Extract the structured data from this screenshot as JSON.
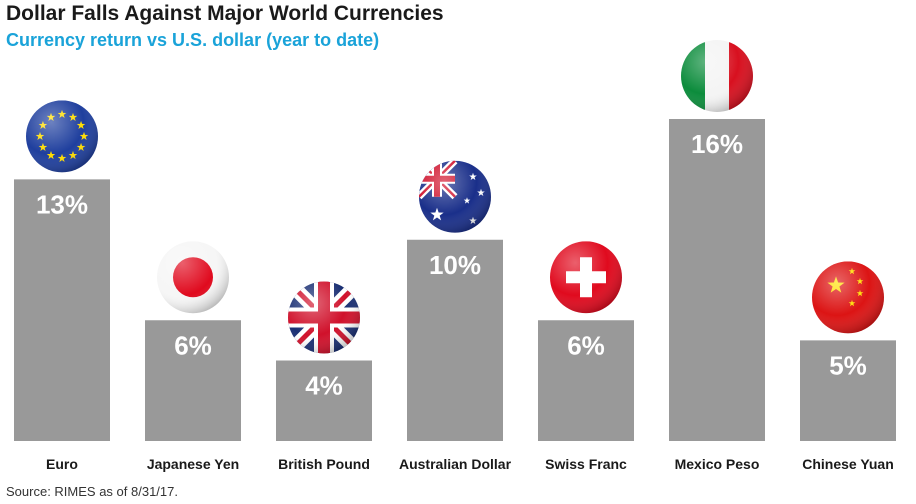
{
  "header": {
    "title": "Dollar Falls Against Major World Currencies",
    "subtitle": "Currency return vs U.S. dollar (year to date)"
  },
  "footer": {
    "source": "Source: RIMES as of 8/31/17."
  },
  "chart_data": {
    "type": "bar",
    "title": "Dollar Falls Against Major World Currencies",
    "subtitle": "Currency return vs U.S. dollar (year to date)",
    "categories": [
      "Euro",
      "Japanese Yen",
      "British Pound",
      "Australian Dollar",
      "Swiss Franc",
      "Mexico Peso",
      "Chinese Yuan"
    ],
    "values": [
      13,
      6,
      4,
      10,
      6,
      16,
      5
    ],
    "value_labels": [
      "13%",
      "6%",
      "4%",
      "10%",
      "6%",
      "16%",
      "5%"
    ],
    "flags": [
      "eu-flag-icon",
      "japan-flag-icon",
      "uk-flag-icon",
      "australia-flag-icon",
      "switzerland-flag-icon",
      "italy-flag-icon",
      "china-flag-icon"
    ],
    "ylim": [
      0,
      16
    ],
    "grid": false,
    "legend": "none",
    "bar_color": "#999999",
    "subtitle_color": "#1aa3d9"
  }
}
